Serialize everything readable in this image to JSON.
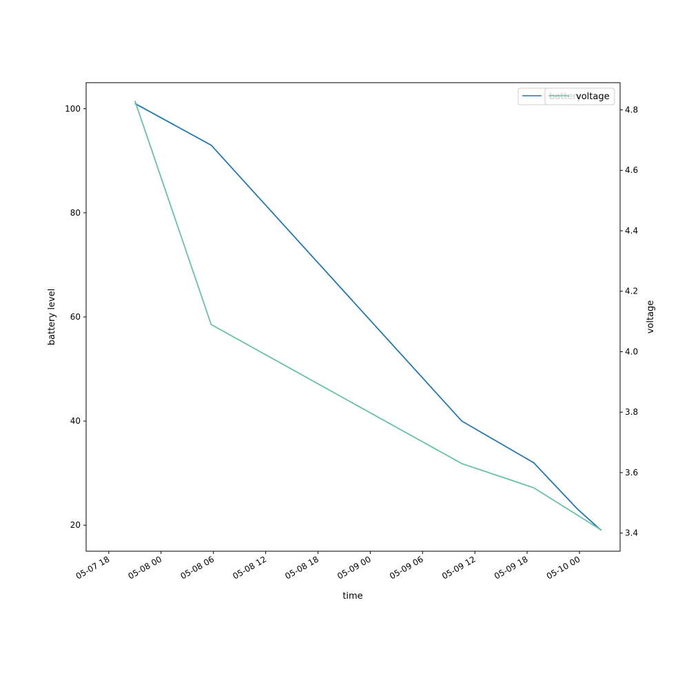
{
  "chart_data": {
    "type": "line",
    "xlabel": "time",
    "ylabel_left": "battery level",
    "ylabel_right": "voltage",
    "x_ticks": [
      "05-07 18",
      "05-08 00",
      "05-08 06",
      "05-08 12",
      "05-08 18",
      "05-09 00",
      "05-09 06",
      "05-09 12",
      "05-09 18",
      "05-10 00"
    ],
    "x_range": [
      "2024-05-07 15:24",
      "2024-05-10 04:40"
    ],
    "y_left_ticks": [
      20,
      40,
      60,
      80,
      100
    ],
    "y_left_range": [
      15,
      105
    ],
    "y_right_ticks": [
      "3.4",
      "3.6",
      "3.8",
      "4.0",
      "4.2",
      "4.4",
      "4.6",
      "4.8"
    ],
    "y_right_range": [
      3.34,
      4.89
    ],
    "series": [
      {
        "name": "battery",
        "axis": "left",
        "color": "#1f77b4",
        "x": [
          "2024-05-07 21:00",
          "2024-05-08 05:45",
          "2024-05-09 10:30",
          "2024-05-09 18:45",
          "2024-05-09 23:50",
          "2024-05-10 02:30"
        ],
        "y": [
          101,
          93,
          40,
          32,
          23,
          19
        ]
      },
      {
        "name": "voltage",
        "axis": "right",
        "color": "#66c2a5",
        "x": [
          "2024-05-07 21:00",
          "2024-05-08 05:45",
          "2024-05-09 10:30",
          "2024-05-09 18:45",
          "2024-05-10 02:30"
        ],
        "y": [
          4.83,
          4.09,
          3.63,
          3.55,
          3.41
        ]
      }
    ],
    "legend_placement": "top-right",
    "grid": false
  }
}
